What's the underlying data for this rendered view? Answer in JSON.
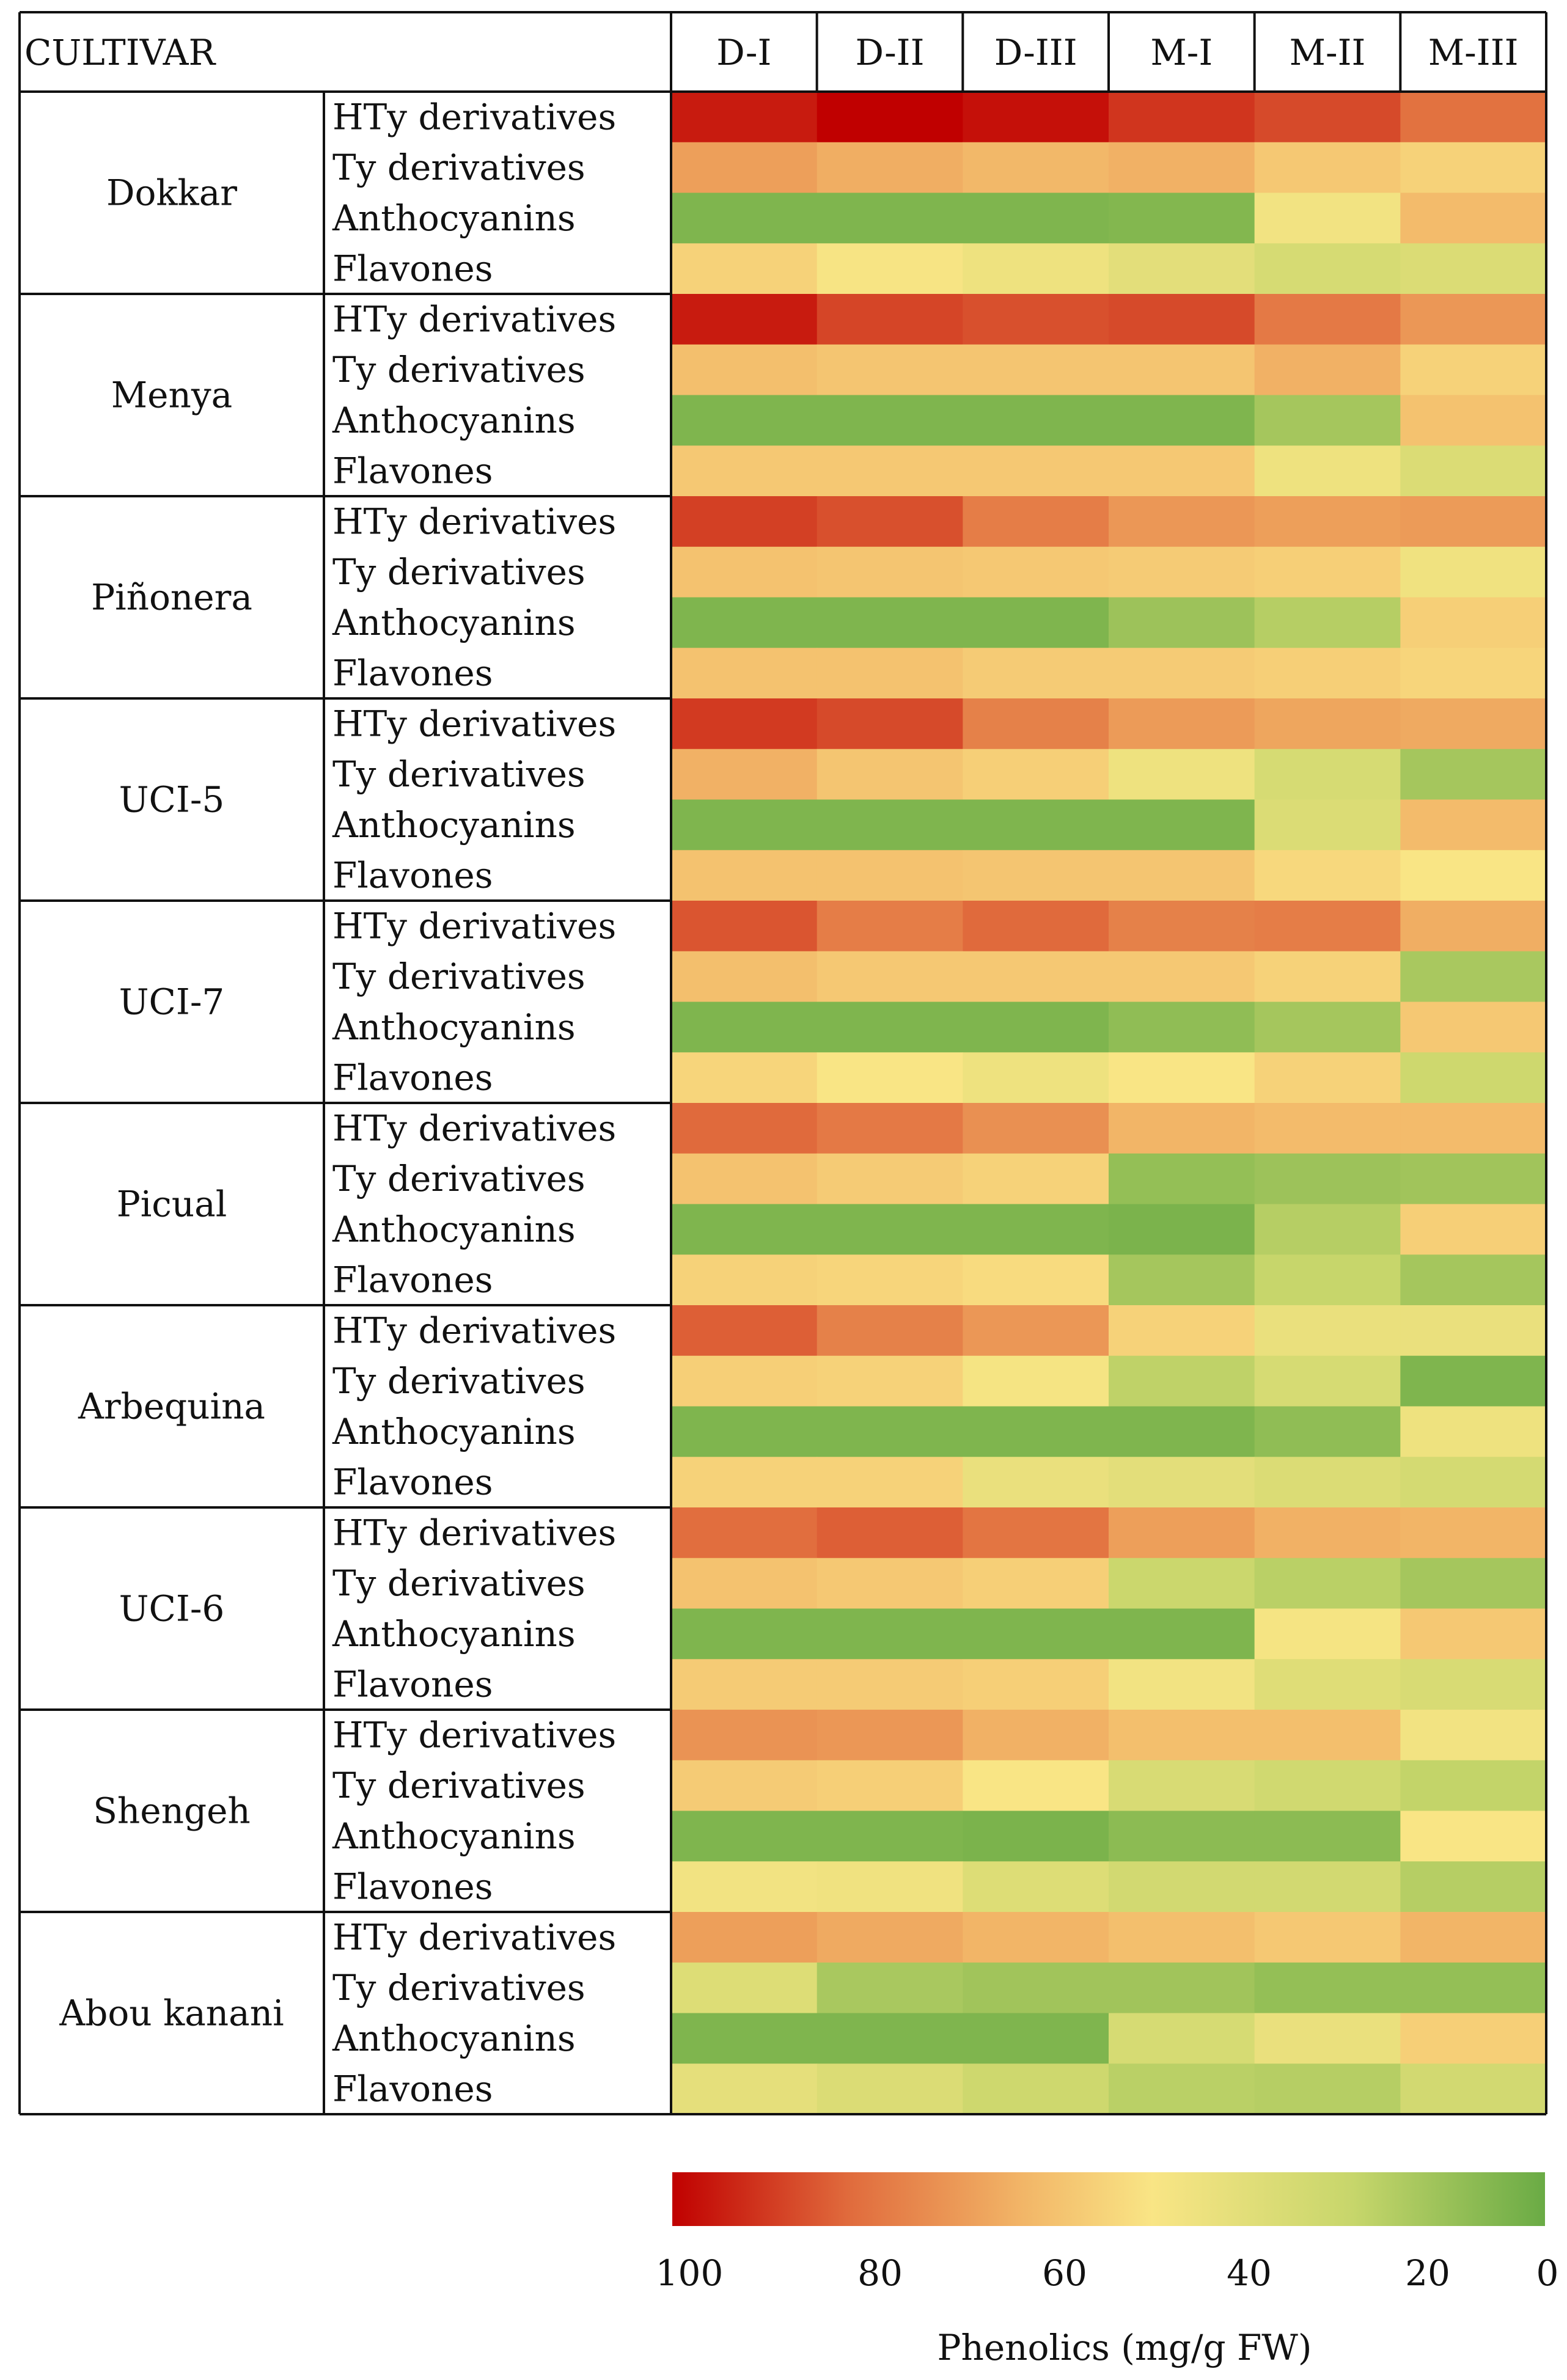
{
  "chart_data": {
    "type": "heatmap",
    "header_label": "CULTIVAR",
    "columns": [
      "D-I",
      "D-II",
      "D-III",
      "M-I",
      "M-II",
      "M-III"
    ],
    "row_labels": [
      "HTy derivatives",
      "Ty derivatives",
      "Anthocyanins",
      "Flavones"
    ],
    "cultivars": [
      {
        "name": "Dokkar",
        "values": [
          [
            95,
            100,
            97,
            90,
            86,
            78
          ],
          [
            66,
            62,
            59,
            61,
            54,
            51
          ],
          [
            5,
            5,
            5,
            6,
            42,
            58
          ],
          [
            51,
            44,
            40,
            35,
            29,
            31
          ]
        ]
      },
      {
        "name": "Menya",
        "values": [
          [
            95,
            87,
            85,
            86,
            76,
            68
          ],
          [
            57,
            55,
            55,
            55,
            61,
            51
          ],
          [
            5,
            5,
            5,
            5,
            14,
            56
          ],
          [
            54,
            54,
            54,
            54,
            40,
            31
          ]
        ]
      },
      {
        "name": "Piñonera",
        "values": [
          [
            88,
            85,
            75,
            68,
            66,
            67
          ],
          [
            56,
            55,
            54,
            53,
            52,
            41
          ],
          [
            5,
            5,
            5,
            12,
            18,
            52
          ],
          [
            56,
            56,
            53,
            53,
            52,
            50
          ]
        ]
      },
      {
        "name": "UCI-5",
        "values": [
          [
            89,
            86,
            74,
            67,
            64,
            63
          ],
          [
            61,
            55,
            52,
            40,
            29,
            14
          ],
          [
            5,
            5,
            5,
            5,
            31,
            58
          ],
          [
            56,
            56,
            55,
            55,
            49,
            45
          ]
        ]
      },
      {
        "name": "UCI-7",
        "values": [
          [
            84,
            75,
            80,
            74,
            75,
            62
          ],
          [
            57,
            54,
            54,
            54,
            51,
            15
          ],
          [
            5,
            5,
            5,
            9,
            14,
            54
          ],
          [
            50,
            45,
            40,
            45,
            51,
            25
          ]
        ]
      },
      {
        "name": "Picual",
        "values": [
          [
            80,
            76,
            70,
            60,
            58,
            58
          ],
          [
            56,
            53,
            51,
            10,
            12,
            13
          ],
          [
            5,
            5,
            5,
            4,
            18,
            52
          ],
          [
            51,
            50,
            48,
            14,
            22,
            14
          ]
        ]
      },
      {
        "name": "Arbequina",
        "values": [
          [
            82,
            74,
            68,
            51,
            38,
            38
          ],
          [
            52,
            51,
            43,
            20,
            29,
            5
          ],
          [
            5,
            5,
            5,
            5,
            9,
            40
          ],
          [
            51,
            51,
            38,
            35,
            31,
            28
          ]
        ]
      },
      {
        "name": "UCI-6",
        "values": [
          [
            79,
            82,
            77,
            66,
            61,
            60
          ],
          [
            56,
            54,
            52,
            24,
            19,
            14
          ],
          [
            5,
            5,
            5,
            5,
            43,
            54
          ],
          [
            53,
            53,
            52,
            42,
            33,
            30
          ]
        ]
      },
      {
        "name": "Shengeh",
        "values": [
          [
            69,
            68,
            61,
            57,
            57,
            42
          ],
          [
            53,
            52,
            45,
            30,
            26,
            21
          ],
          [
            5,
            5,
            4,
            8,
            8,
            45
          ],
          [
            42,
            41,
            32,
            27,
            27,
            18
          ]
        ]
      },
      {
        "name": "Abou kanani",
        "values": [
          [
            66,
            63,
            60,
            57,
            54,
            60
          ],
          [
            32,
            15,
            13,
            13,
            10,
            10
          ],
          [
            5,
            5,
            5,
            29,
            38,
            52
          ],
          [
            36,
            31,
            25,
            19,
            18,
            27
          ]
        ]
      }
    ],
    "colorbar": {
      "ticks": [
        100,
        80,
        60,
        40,
        20,
        0
      ],
      "range": [
        0,
        100
      ],
      "label": "Phenolics (mg/g FW)",
      "colors": [
        "#c00000",
        "#e06a3c",
        "#f2b567",
        "#f9e585",
        "#c7d66b",
        "#6aab45"
      ]
    }
  }
}
